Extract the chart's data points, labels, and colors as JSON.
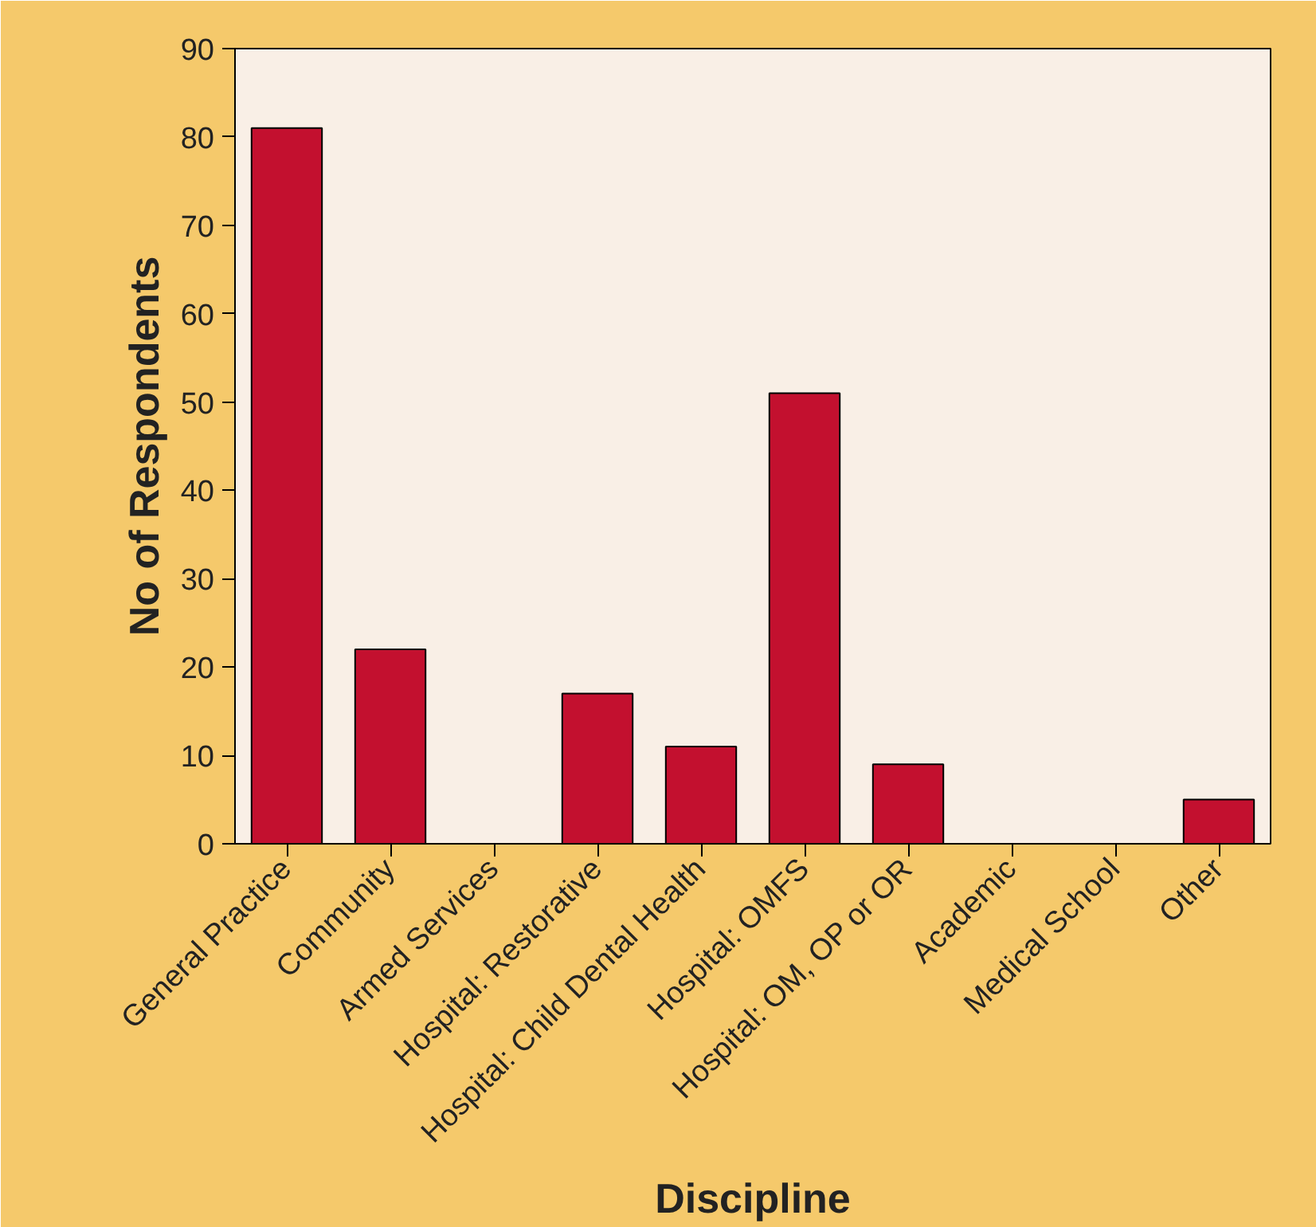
{
  "chart_data": {
    "type": "bar",
    "xlabel": "Discipline",
    "ylabel": "No of Respondents",
    "categories": [
      "General Practice",
      "Community",
      "Armed Services",
      "Hospital: Restorative",
      "Hospital: Child Dental Health",
      "Hospital: OMFS",
      "Hospital: OM, OP or OR",
      "Academic",
      "Medical School",
      "Other"
    ],
    "values": [
      81,
      22,
      0,
      17,
      11,
      51,
      9,
      0,
      0,
      5
    ],
    "color": "#c3102f",
    "ylim": [
      0,
      90
    ],
    "yticks": [
      0,
      10,
      20,
      30,
      40,
      50,
      60,
      70,
      80,
      90
    ],
    "grid": false
  }
}
